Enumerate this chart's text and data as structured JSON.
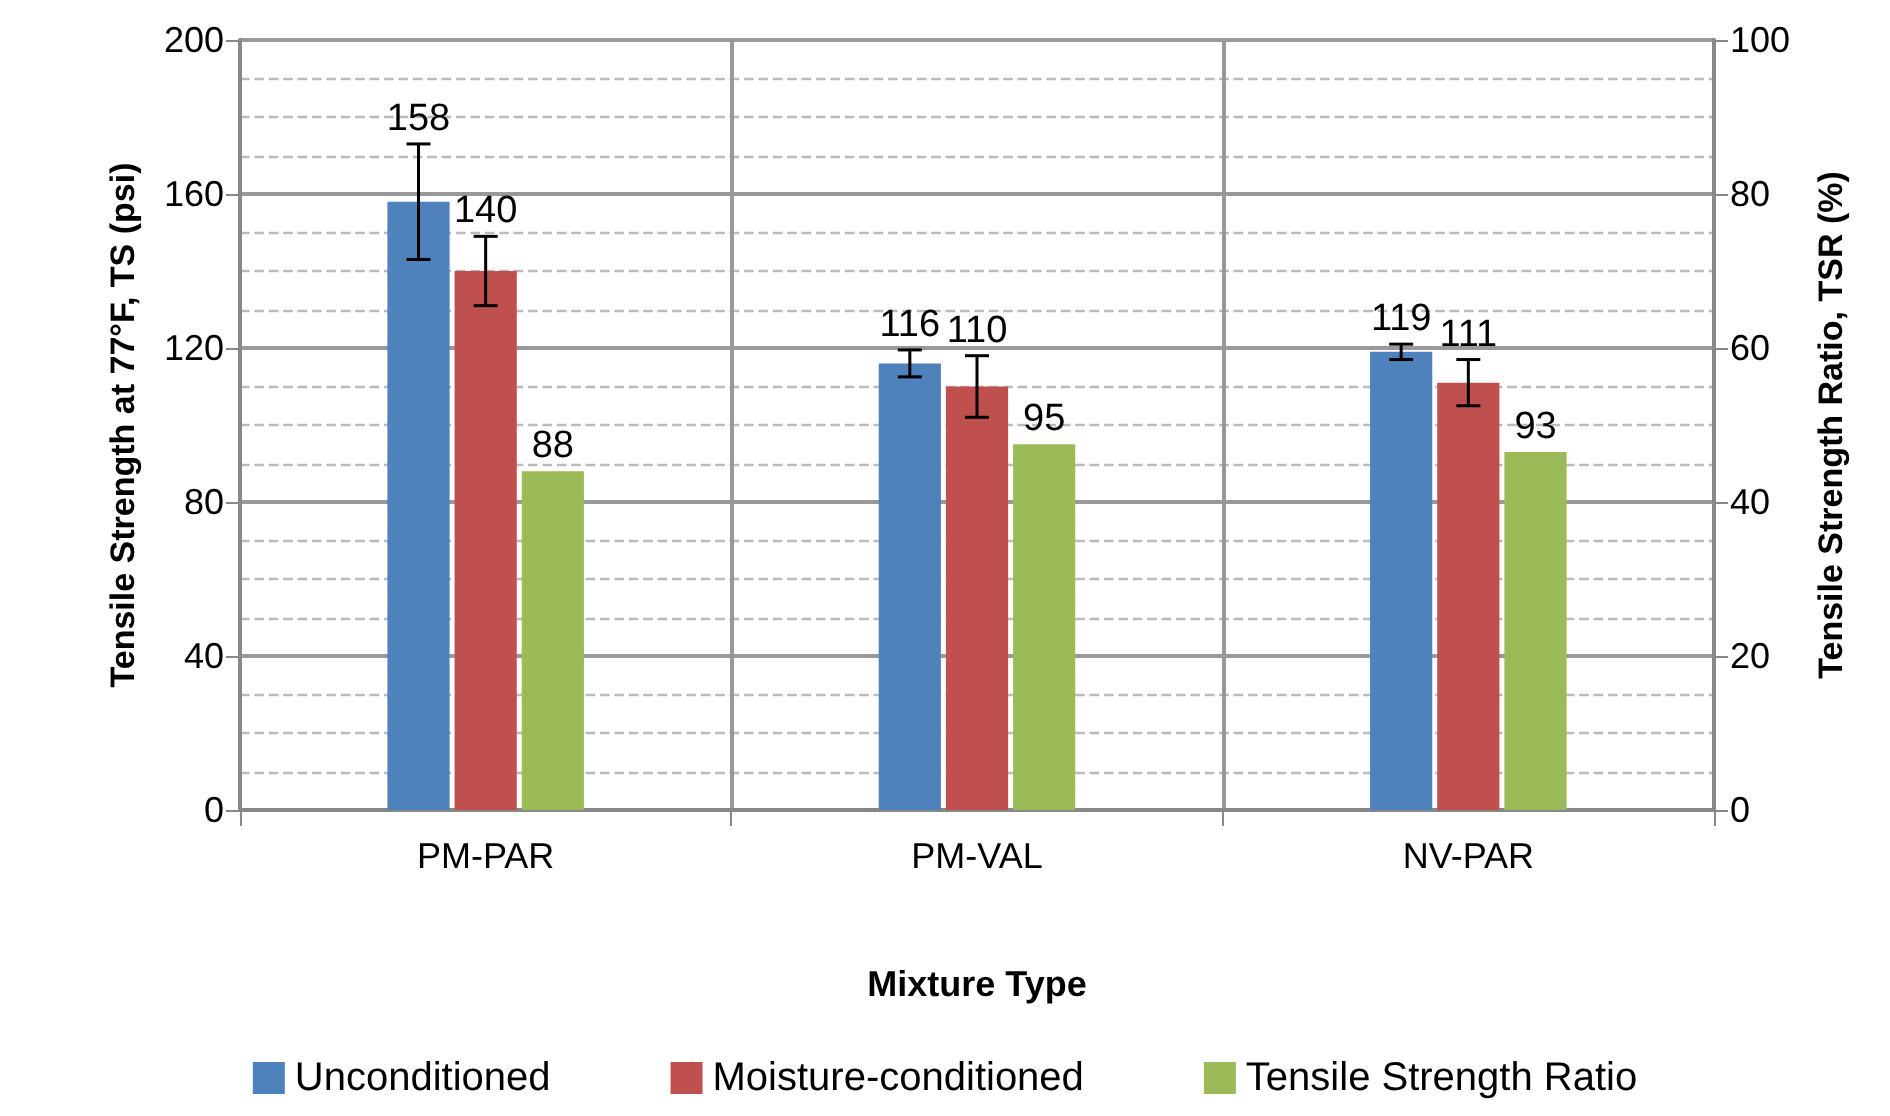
{
  "chart_data": {
    "type": "bar",
    "xlabel": "Mixture Type",
    "ylabel": "Tensile Strength at 77°F, TS (psi)",
    "y2label": "Tensile Strength Ratio, TSR (%)",
    "categories": [
      "PM-PAR",
      "PM-VAL",
      "NV-PAR"
    ],
    "series": [
      {
        "name": "Unconditioned",
        "color": "#4f81bd",
        "values": [
          158,
          116,
          119
        ],
        "errors": [
          15,
          3.5,
          2
        ]
      },
      {
        "name": "Moisture-conditioned",
        "color": "#c0504d",
        "values": [
          140,
          110,
          111
        ],
        "errors": [
          9,
          8,
          6
        ]
      },
      {
        "name": "Tensile Strength Ratio",
        "color": "#9bbb59",
        "values": [
          88,
          95,
          93
        ]
      }
    ],
    "ylim": [
      0,
      200
    ],
    "yticks": [
      0,
      40,
      80,
      120,
      160,
      200
    ],
    "y2lim": [
      0,
      100
    ],
    "y2ticks": [
      0,
      20,
      40,
      60,
      80,
      100
    ],
    "data_labels": true,
    "grid": true,
    "legend": "bottom"
  }
}
